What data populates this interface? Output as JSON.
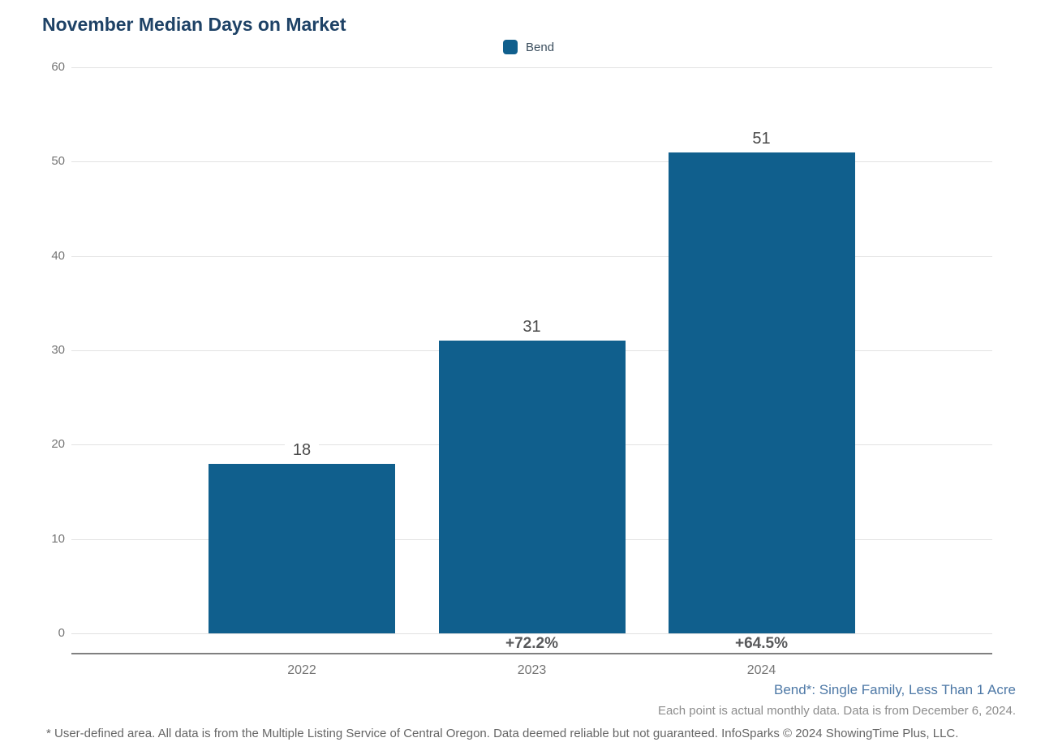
{
  "title": "November Median Days on Market",
  "legend": {
    "label": "Bend",
    "swatch_color": "#105f8d"
  },
  "chart_data": {
    "type": "bar",
    "title": "November Median Days on Market",
    "series_name": "Bend",
    "categories": [
      "2022",
      "2023",
      "2024"
    ],
    "values": [
      18,
      31,
      51
    ],
    "value_labels": [
      "18",
      "31",
      "51"
    ],
    "change_labels": [
      "",
      "+72.2%",
      "+64.5%"
    ],
    "xlabel": "",
    "ylabel": "",
    "ylim": [
      0,
      60
    ],
    "yticks": [
      0,
      10,
      20,
      30,
      40,
      50,
      60
    ],
    "grid": true,
    "legend_position": "top-center",
    "bar_color": "#105f8d"
  },
  "annotations": {
    "series_note": "Bend*: Single Family, Less Than 1 Acre",
    "data_note": "Each point is actual monthly data. Data is from December 6, 2024."
  },
  "footer": "* User-defined area. All data is from the Multiple Listing Service of Central Oregon. Data deemed reliable but not guaranteed. InfoSparks © 2024 ShowingTime Plus, LLC.",
  "colors": {
    "bar": "#105f8d",
    "title": "#1e4266",
    "axis_line": "#808080",
    "gridline": "#e2e2e2",
    "tick_label": "#757575",
    "value_label": "#4a4a4a",
    "change_label": "#58595b",
    "series_note": "#4d78a6",
    "data_note": "#8c8c8c",
    "footer": "#666666"
  }
}
